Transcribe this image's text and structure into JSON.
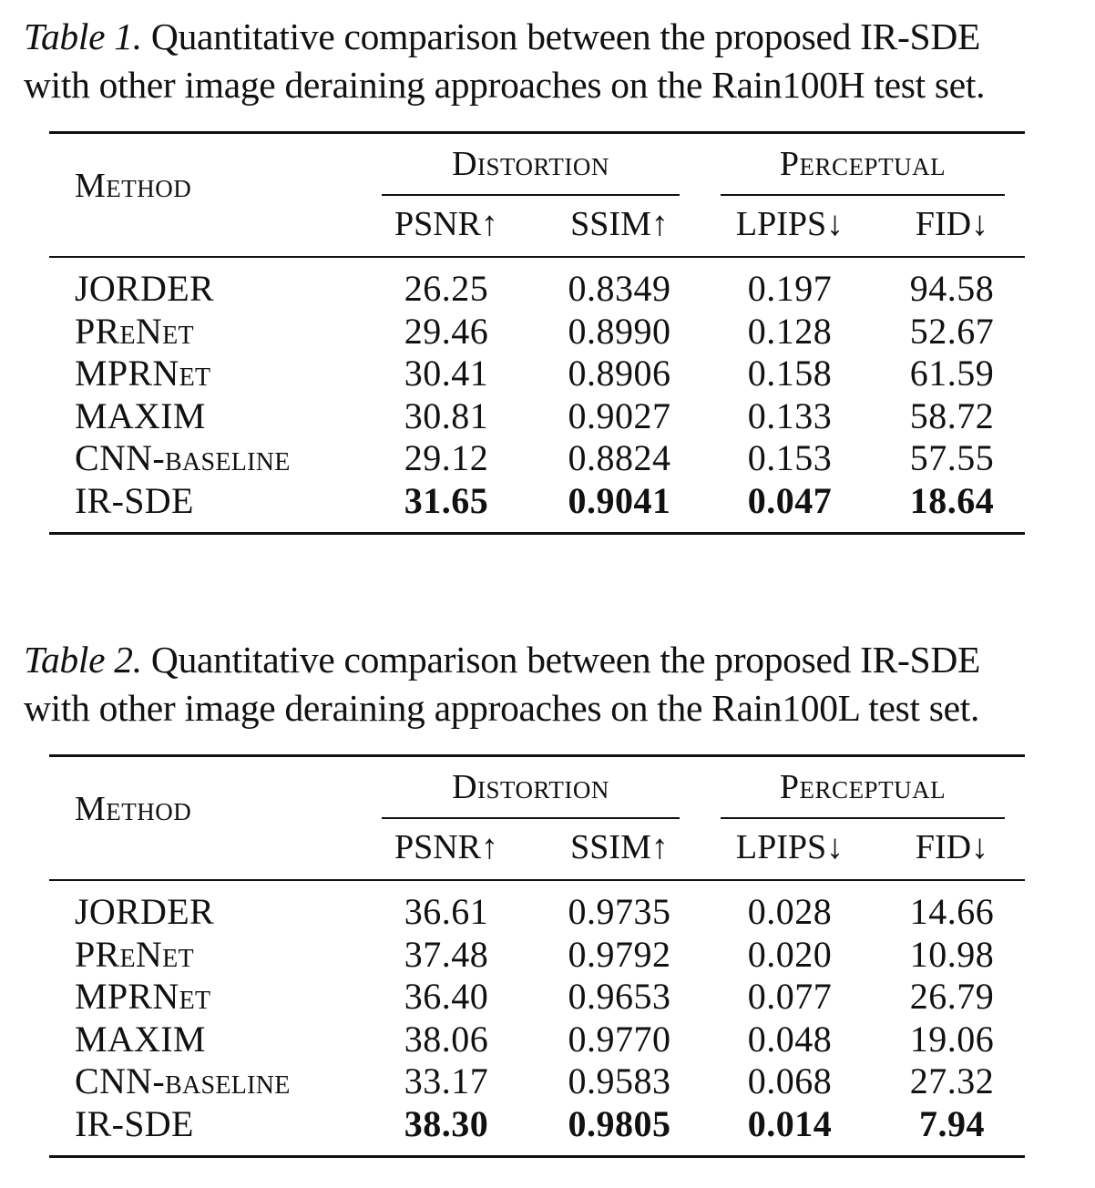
{
  "tables": [
    {
      "caption_label": "Table 1.",
      "caption_line1": " Quantitative comparison between the proposed IR-SDE",
      "caption_line2": "with other image deraining approaches on the Rain100H test set.",
      "header": {
        "method": "Method",
        "group1": "Distortion",
        "group2": "Perceptual",
        "cols": [
          "PSNR↑",
          "SSIM↑",
          "LPIPS↓",
          "FID↓"
        ]
      },
      "rows": [
        {
          "method": "JORDER",
          "psnr": "26.25",
          "ssim": "0.8349",
          "lpips": "0.197",
          "fid": "94.58"
        },
        {
          "method": "PReNet",
          "psnr": "29.46",
          "ssim": "0.8990",
          "lpips": "0.128",
          "fid": "52.67"
        },
        {
          "method": "MPRNet",
          "psnr": "30.41",
          "ssim": "0.8906",
          "lpips": "0.158",
          "fid": "61.59"
        },
        {
          "method": "MAXIM",
          "psnr": "30.81",
          "ssim": "0.9027",
          "lpips": "0.133",
          "fid": "58.72"
        },
        {
          "method": "CNN-baseline",
          "psnr": "29.12",
          "ssim": "0.8824",
          "lpips": "0.153",
          "fid": "57.55"
        },
        {
          "method": "IR-SDE",
          "psnr": "31.65",
          "ssim": "0.9041",
          "lpips": "0.047",
          "fid": "18.64"
        }
      ]
    },
    {
      "caption_label": "Table 2.",
      "caption_line1": " Quantitative comparison between the proposed IR-SDE",
      "caption_line2": "with other image deraining approaches on the Rain100L test set.",
      "header": {
        "method": "Method",
        "group1": "Distortion",
        "group2": "Perceptual",
        "cols": [
          "PSNR↑",
          "SSIM↑",
          "LPIPS↓",
          "FID↓"
        ]
      },
      "rows": [
        {
          "method": "JORDER",
          "psnr": "36.61",
          "ssim": "0.9735",
          "lpips": "0.028",
          "fid": "14.66"
        },
        {
          "method": "PReNet",
          "psnr": "37.48",
          "ssim": "0.9792",
          "lpips": "0.020",
          "fid": "10.98"
        },
        {
          "method": "MPRNet",
          "psnr": "36.40",
          "ssim": "0.9653",
          "lpips": "0.077",
          "fid": "26.79"
        },
        {
          "method": "MAXIM",
          "psnr": "38.06",
          "ssim": "0.9770",
          "lpips": "0.048",
          "fid": "19.06"
        },
        {
          "method": "CNN-baseline",
          "psnr": "33.17",
          "ssim": "0.9583",
          "lpips": "0.068",
          "fid": "27.32"
        },
        {
          "method": "IR-SDE",
          "psnr": "38.30",
          "ssim": "0.9805",
          "lpips": "0.014",
          "fid": "7.94"
        }
      ]
    }
  ]
}
